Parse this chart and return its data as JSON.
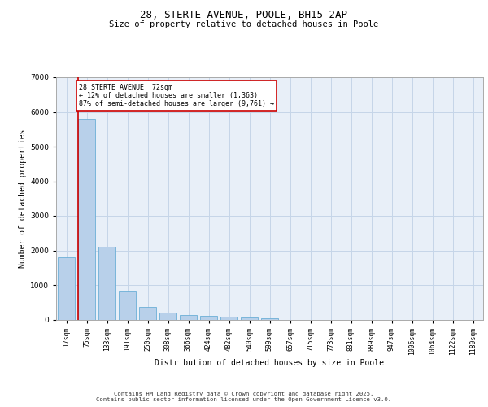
{
  "title_line1": "28, STERTE AVENUE, POOLE, BH15 2AP",
  "title_line2": "Size of property relative to detached houses in Poole",
  "xlabel": "Distribution of detached houses by size in Poole",
  "ylabel": "Number of detached properties",
  "bar_color": "#b8d0ea",
  "bar_edge_color": "#6baed6",
  "background_color": "#e8eff8",
  "grid_color": "#c5d5e8",
  "categories": [
    "17sqm",
    "75sqm",
    "133sqm",
    "191sqm",
    "250sqm",
    "308sqm",
    "366sqm",
    "424sqm",
    "482sqm",
    "540sqm",
    "599sqm",
    "657sqm",
    "715sqm",
    "773sqm",
    "831sqm",
    "889sqm",
    "947sqm",
    "1006sqm",
    "1064sqm",
    "1122sqm",
    "1180sqm"
  ],
  "values": [
    1800,
    5800,
    2100,
    820,
    370,
    210,
    120,
    95,
    80,
    55,
    35,
    0,
    0,
    0,
    0,
    0,
    0,
    0,
    0,
    0,
    0
  ],
  "ylim": [
    0,
    7000
  ],
  "yticks": [
    0,
    1000,
    2000,
    3000,
    4000,
    5000,
    6000,
    7000
  ],
  "annotation_text": "28 STERTE AVENUE: 72sqm\n← 12% of detached houses are smaller (1,363)\n87% of semi-detached houses are larger (9,761) →",
  "vline_color": "#cc0000",
  "footer_line1": "Contains HM Land Registry data © Crown copyright and database right 2025.",
  "footer_line2": "Contains public sector information licensed under the Open Government Licence v3.0."
}
